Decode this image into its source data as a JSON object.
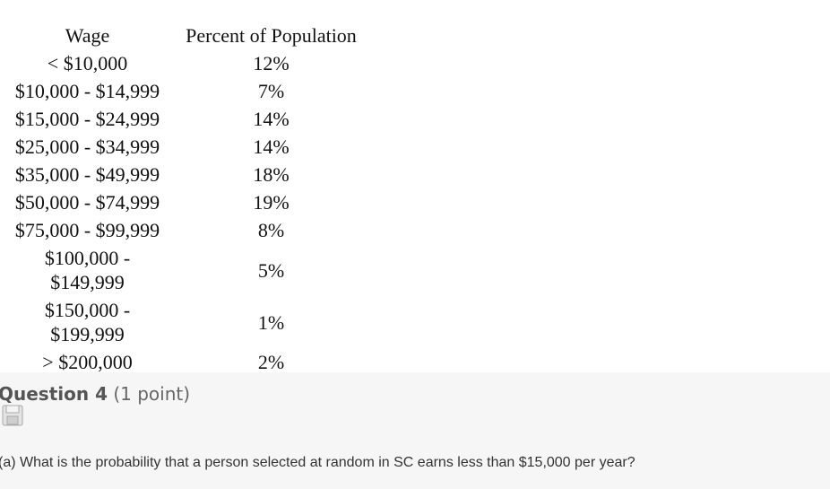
{
  "table": {
    "headers": [
      "Wage",
      "Percent of Population"
    ],
    "rows": [
      [
        "< $10,000",
        "12%"
      ],
      [
        "$10,000 - $14,999",
        "7%"
      ],
      [
        "$15,000 - $24,999",
        "14%"
      ],
      [
        "$25,000 - $34,999",
        "14%"
      ],
      [
        "$35,000 - $49,999",
        "18%"
      ],
      [
        "$50,000 - $74,999",
        "19%"
      ],
      [
        "$75,000 - $99,999",
        "8%"
      ],
      [
        "$100,000 - $149,999",
        "5%"
      ],
      [
        "$150,000 - $199,999",
        "1%"
      ],
      [
        "> $200,000",
        "2%"
      ]
    ]
  },
  "question": {
    "title": "Question 4",
    "points": "(1 point)",
    "text": "(a) What is the probability that a person selected at random in SC earns less than $15,000 per year?"
  }
}
